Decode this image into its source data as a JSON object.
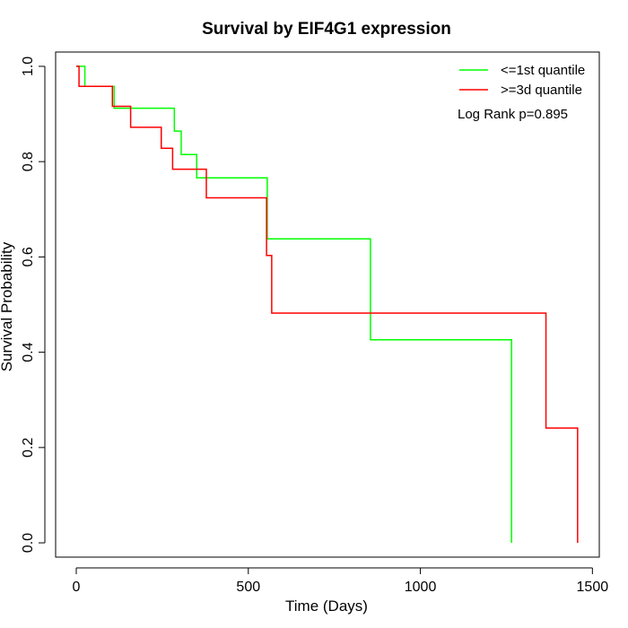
{
  "chart_data": {
    "type": "line",
    "step": true,
    "title": "Survival by EIF4G1 expression",
    "xlabel": "Time (Days)",
    "ylabel": "Survival Probability",
    "xlim": [
      -60,
      1520
    ],
    "ylim": [
      -0.03,
      1.03
    ],
    "xticks": [
      0,
      500,
      1000,
      1500
    ],
    "yticks": [
      0.0,
      0.2,
      0.4,
      0.6,
      0.8,
      1.0
    ],
    "xtick_labels": [
      "0",
      "500",
      "1000",
      "1500"
    ],
    "ytick_labels": [
      "0.0",
      "0.2",
      "0.4",
      "0.6",
      "0.8",
      "1.0"
    ],
    "grid": false,
    "legend_position": "top-right",
    "annotation": "Log Rank p=0.895",
    "series": [
      {
        "name": "<=1st quantile",
        "color": "#00ff00",
        "x": [
          0,
          25,
          110,
          285,
          305,
          350,
          555,
          855,
          1265
        ],
        "y": [
          1.0,
          0.958,
          0.912,
          0.864,
          0.815,
          0.766,
          0.638,
          0.426,
          0.0
        ]
      },
      {
        "name": ">=3d quantile",
        "color": "#ff0000",
        "x": [
          0,
          8,
          105,
          158,
          247,
          280,
          378,
          553,
          558,
          568,
          1365,
          1457
        ],
        "y": [
          1.0,
          0.958,
          0.916,
          0.872,
          0.828,
          0.784,
          0.724,
          0.603,
          0.603,
          0.482,
          0.241,
          0.0
        ]
      }
    ]
  }
}
